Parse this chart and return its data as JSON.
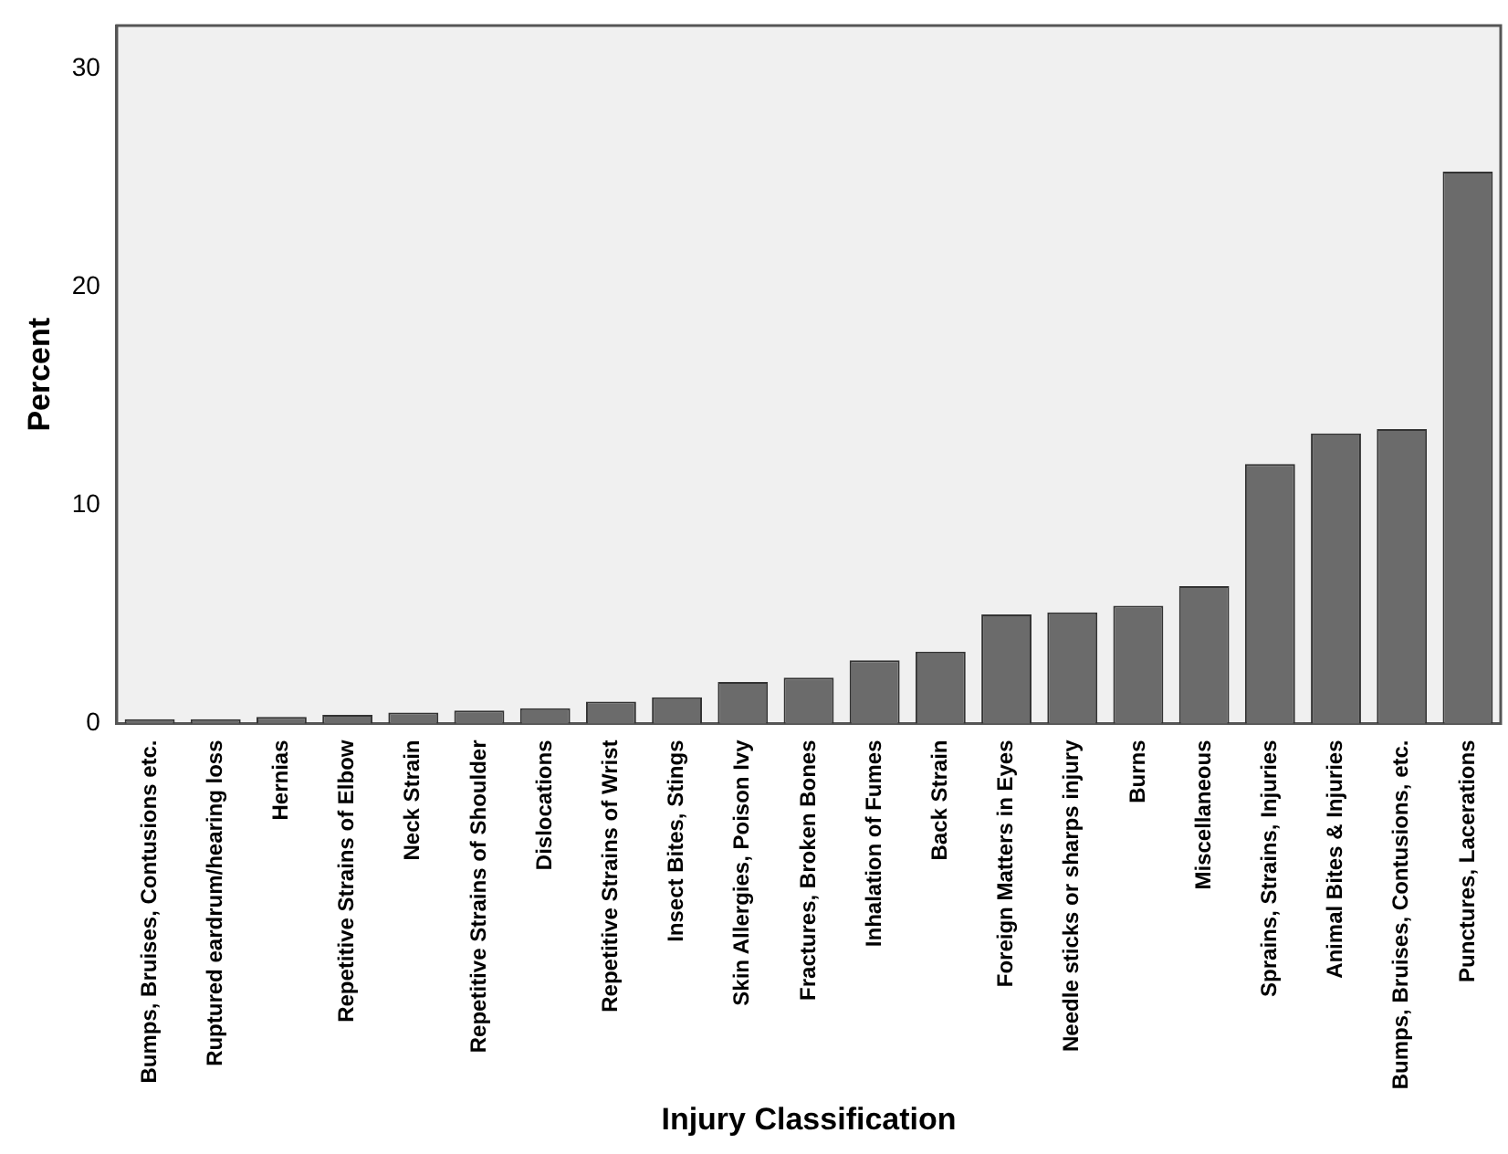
{
  "chart_data": {
    "type": "bar",
    "xlabel": "Injury Classification",
    "ylabel": "Percent",
    "categories": [
      "Bumps, Bruises, Contusions etc.",
      "Ruptured eardrum/hearing loss",
      "Hernias",
      "Repetitive Strains of Elbow",
      "Neck Strain",
      "Repetitive Strains of Shoulder",
      "Dislocations",
      "Repetitive Strains of Wrist",
      "Insect Bites, Stings",
      "Skin Allergies, Poison Ivy",
      "Fractures, Broken Bones",
      "Inhalation of Fumes",
      "Back Strain",
      "Foreign Matters in Eyes",
      "Needle sticks or sharps injury",
      "Burns",
      "Miscellaneous",
      "Sprains, Strains, Injuries",
      "Animal Bites & Injuries",
      "Bumps, Bruises, Contusions, etc.",
      "Punctures, Lacerations"
    ],
    "values": [
      0.2,
      0.2,
      0.3,
      0.4,
      0.5,
      0.6,
      0.7,
      1.0,
      1.2,
      1.9,
      2.1,
      2.9,
      3.3,
      5.0,
      5.1,
      5.4,
      6.3,
      11.9,
      13.3,
      13.5,
      25.3
    ],
    "color": "#6b6b6b",
    "ylim": [
      0,
      32
    ],
    "yticks": [
      0,
      10,
      20,
      30
    ],
    "grid": false,
    "legend": false
  }
}
